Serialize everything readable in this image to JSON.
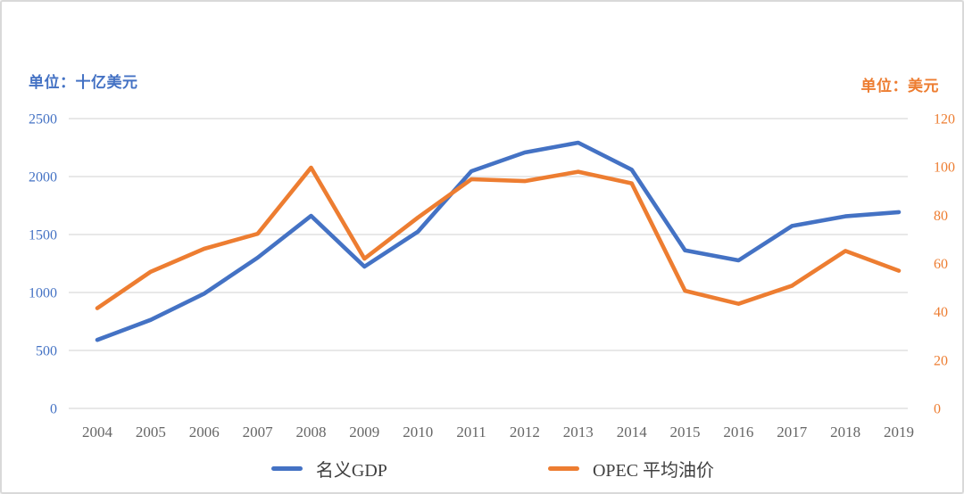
{
  "chart_data": {
    "type": "line",
    "title": "",
    "x": [
      "2004",
      "2005",
      "2006",
      "2007",
      "2008",
      "2009",
      "2010",
      "2011",
      "2012",
      "2013",
      "2014",
      "2015",
      "2016",
      "2017",
      "2018",
      "2019"
    ],
    "series": [
      {
        "name": "名义GDP",
        "axis": "left",
        "color": "#4472C4",
        "values": [
          591,
          764,
          990,
          1300,
          1661,
          1223,
          1525,
          2046,
          2208,
          2292,
          2059,
          1363,
          1277,
          1574,
          1657,
          1693
        ]
      },
      {
        "name": "OPEC 平均油价",
        "axis": "right",
        "color": "#ED7D31",
        "values": [
          41.5,
          56.6,
          66.1,
          72.3,
          99.7,
          62.0,
          79.0,
          94.9,
          94.1,
          98.0,
          93.2,
          48.7,
          43.3,
          50.8,
          65.2,
          57.0
        ]
      }
    ],
    "left_axis": {
      "unit_label": "单位：十亿美元",
      "color": "#4472C4",
      "ticks": [
        2500,
        2000,
        1500,
        1000,
        500,
        0
      ],
      "range": [
        0,
        2500
      ]
    },
    "right_axis": {
      "unit_label": "单位：美元",
      "color": "#ED7D31",
      "ticks": [
        120,
        100,
        80,
        60,
        40,
        20,
        0
      ],
      "range": [
        0,
        120
      ]
    },
    "x_axis": {
      "label_color": "#666666"
    },
    "grid": true,
    "gridline_color": "#d9d9d9",
    "legend_position": "bottom"
  }
}
